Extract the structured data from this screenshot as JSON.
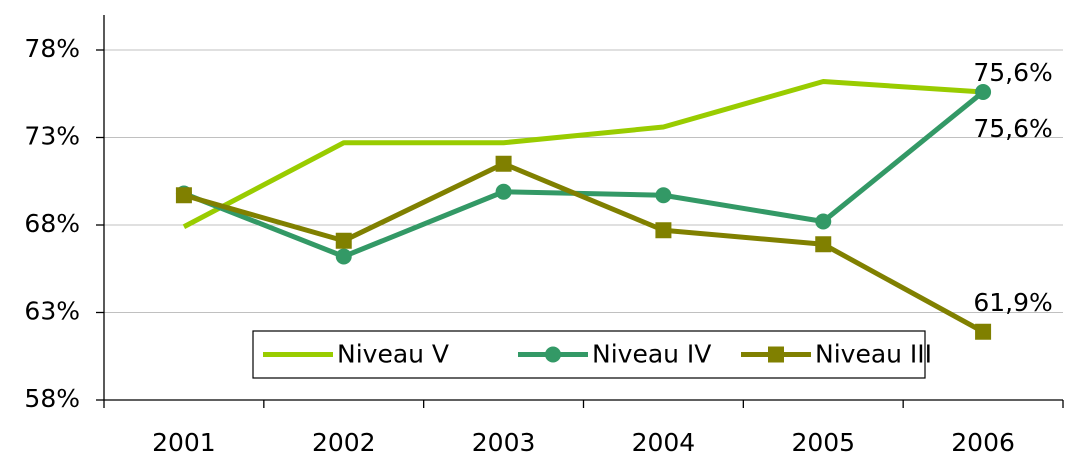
{
  "chart_data": {
    "type": "line",
    "categories": [
      "2001",
      "2002",
      "2003",
      "2004",
      "2005",
      "2006"
    ],
    "series": [
      {
        "name": "Niveau V",
        "color": "#99cc00",
        "marker": "none",
        "values": [
          67.9,
          72.7,
          72.7,
          73.6,
          76.2,
          75.6
        ],
        "value_labels": [
          null,
          null,
          null,
          null,
          null,
          "75,6%"
        ]
      },
      {
        "name": "Niveau IV",
        "color": "#339966",
        "marker": "circle",
        "values": [
          69.8,
          66.2,
          69.9,
          69.7,
          68.2,
          75.6
        ],
        "value_labels": [
          null,
          null,
          null,
          null,
          null,
          "75,6%"
        ]
      },
      {
        "name": "Niveau III",
        "color": "#808000",
        "marker": "square",
        "values": [
          69.7,
          67.1,
          71.5,
          67.7,
          66.9,
          61.9
        ],
        "value_labels": [
          null,
          null,
          null,
          null,
          null,
          "61,9%"
        ]
      }
    ],
    "ylim": [
      58,
      80
    ],
    "yticks": [
      {
        "value": 58,
        "label": "58%"
      },
      {
        "value": 63,
        "label": "63%"
      },
      {
        "value": 68,
        "label": "68%"
      },
      {
        "value": 73,
        "label": "73%"
      },
      {
        "value": 78,
        "label": "78%"
      }
    ],
    "grid": true,
    "legend": "bottom"
  }
}
